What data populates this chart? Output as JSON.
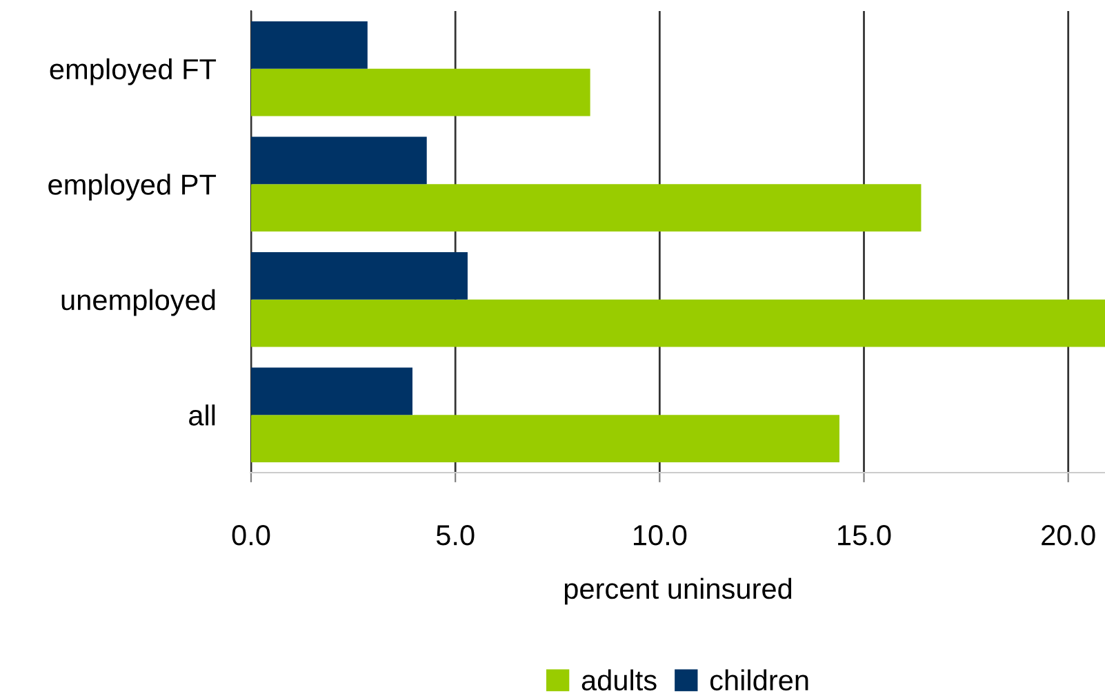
{
  "chart_data": {
    "type": "bar",
    "orientation": "horizontal",
    "categories": [
      "employed FT",
      "employed PT",
      "unemployed",
      "all"
    ],
    "series": [
      {
        "name": "adults",
        "color": "#99cc00",
        "values": [
          8.3,
          16.4,
          20.9,
          14.4
        ]
      },
      {
        "name": "children",
        "color": "#003366",
        "values": [
          2.85,
          4.3,
          5.3,
          3.95
        ]
      }
    ],
    "xlabel": "percent uninsured",
    "xlim": [
      0,
      20.9
    ],
    "xticks": [
      {
        "value": 0,
        "label": "0.0"
      },
      {
        "value": 5,
        "label": "5.0"
      },
      {
        "value": 10,
        "label": "10.0"
      },
      {
        "value": 15,
        "label": "15.0"
      },
      {
        "value": 20,
        "label": "20.0"
      }
    ],
    "grid": "x",
    "legend": "bottom"
  }
}
